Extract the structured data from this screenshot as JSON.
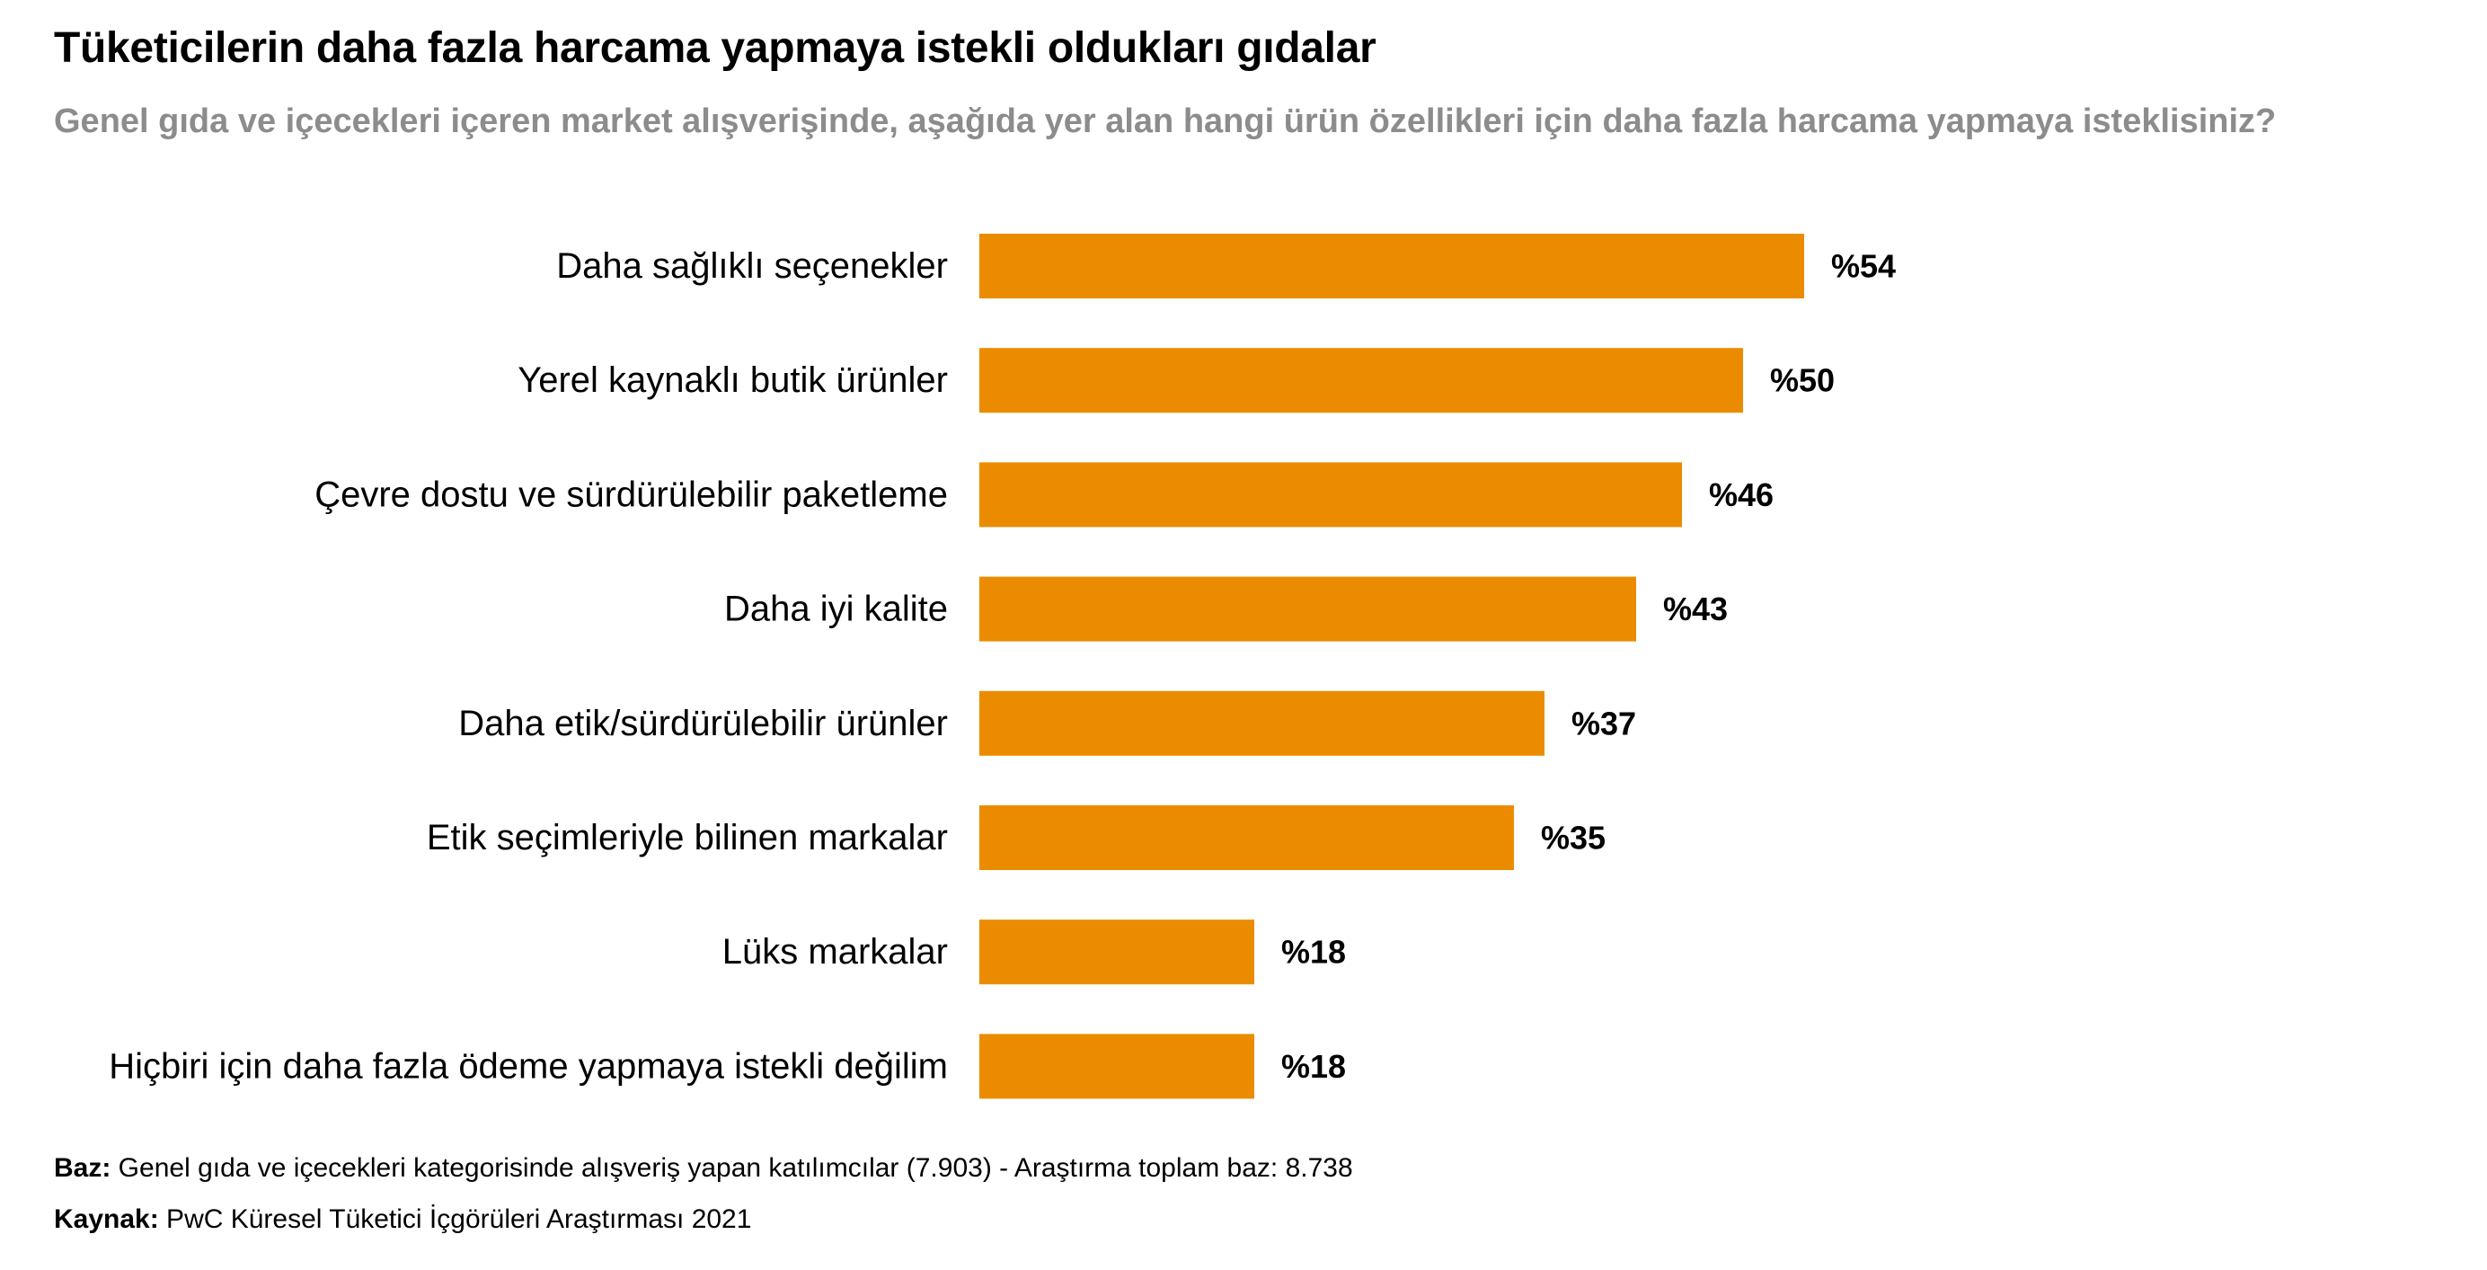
{
  "header": {
    "title": "Tüketicilerin daha fazla harcama yapmaya istekli oldukları gıdalar",
    "subtitle": "Genel gıda ve içecekleri içeren market alışverişinde, aşağıda yer alan hangi ürün özellikleri için daha fazla harcama yapmaya isteklisiniz?"
  },
  "chart_data": {
    "type": "bar",
    "orientation": "horizontal",
    "categories": [
      "Daha sağlıklı seçenekler",
      "Yerel kaynaklı butik ürünler",
      "Çevre dostu ve sürdürülebilir paketleme",
      "Daha iyi kalite",
      "Daha etik/sürdürülebilir ürünler",
      "Etik seçimleriyle bilinen markalar",
      "Lüks markalar",
      "Hiçbiri için daha fazla ödeme yapmaya istekli değilim"
    ],
    "values": [
      54,
      50,
      46,
      43,
      37,
      35,
      18,
      18
    ],
    "value_labels": [
      "%54",
      "%50",
      "%46",
      "%43",
      "%37",
      "%35",
      "%18",
      "%18"
    ],
    "bar_color": "#EB8C00",
    "grid": false,
    "legend": "none"
  },
  "footer": {
    "base_label": "Baz:",
    "base_text": " Genel gıda ve içecekleri kategorisinde alışveriş yapan katılımcılar (7.903) - Araştırma toplam baz: 8.738",
    "source_label": "Kaynak:",
    "source_text": " PwC Küresel Tüketici İçgörüleri Araştırması 2021"
  }
}
